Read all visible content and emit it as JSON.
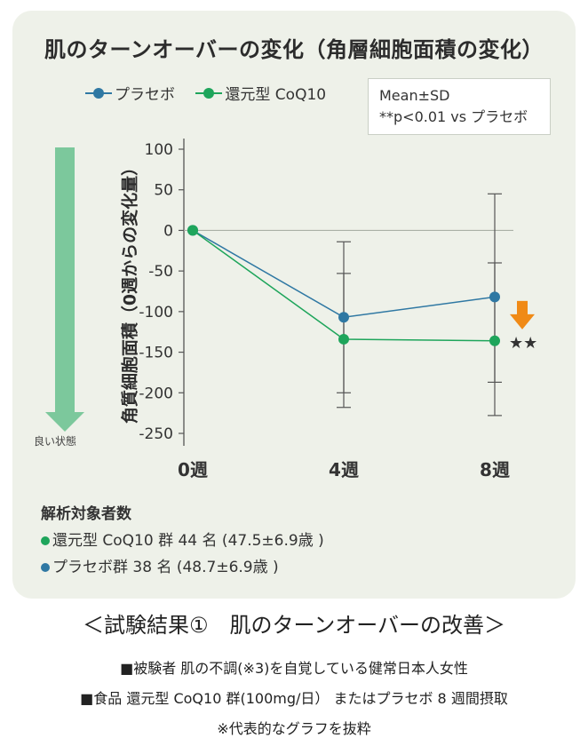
{
  "title": "肌のターンオーバーの変化（角層細胞面積の変化）",
  "legend": {
    "placebo": {
      "label": "プラセボ",
      "color": "#2f78a3"
    },
    "coq10": {
      "label": "還元型 CoQ10",
      "color": "#1ea55b"
    }
  },
  "stats_box": {
    "line1": "Mean±SD",
    "line2": "**p<0.01 vs プラセボ"
  },
  "good_direction_label": "良い状態",
  "significance": "★★",
  "arrow_color": "#f08a16",
  "chart_data": {
    "type": "line",
    "categories": [
      "0週",
      "4週",
      "8週"
    ],
    "ylabel": "角質細胞面積（0週からの変化量）",
    "ylim": [
      -250,
      100
    ],
    "yticks": [
      100,
      50,
      0,
      -50,
      -100,
      -150,
      -200,
      -250
    ],
    "grid": false,
    "legend_position": "top-left",
    "series": [
      {
        "name": "プラセボ",
        "color": "#2f78a3",
        "values": [
          0,
          -107,
          -82
        ],
        "sd_lower": [
          null,
          -200,
          -187
        ],
        "sd_upper": [
          null,
          -14,
          45
        ]
      },
      {
        "name": "還元型 CoQ10",
        "color": "#1ea55b",
        "values": [
          0,
          -134,
          -136
        ],
        "sd_lower": [
          null,
          -218,
          -228
        ],
        "sd_upper": [
          null,
          -53,
          -40
        ]
      }
    ]
  },
  "analysis": {
    "heading": "解析対象者数",
    "coq10_line": "還元型 CoQ10 群 44 名 (47.5±6.9歳 )",
    "placebo_line": "プラセボ群 38 名 (48.7±6.9歳 )"
  },
  "caption": "＜試験結果①　肌のターンオーバーの改善＞",
  "notes": {
    "subjects": "■被験者 肌の不調(※3)を自覚している健常日本人女性",
    "food": "■食品 還元型 CoQ10 群(100mg/日） またはプラセボ 8 週間摂取",
    "excerpt": "※代表的なグラフを抜粋"
  }
}
